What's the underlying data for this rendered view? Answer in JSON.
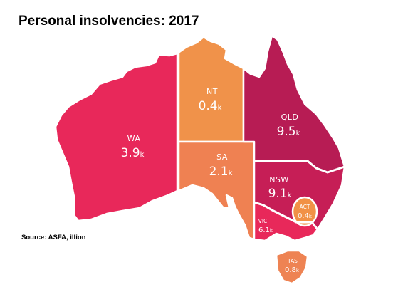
{
  "title": "Personal insolvencies: 2017",
  "source": "Source: ASFA, illion",
  "colors": {
    "wa": "#e8285a",
    "nt": "#f0924a",
    "sa": "#ef8152",
    "qld": "#b71c54",
    "nsw": "#c61e56",
    "act": "#f19146",
    "vic": "#e8285a",
    "tas": "#ee8353",
    "label": "#ffffff"
  },
  "states": {
    "wa": {
      "name": "WA",
      "value": "3.9",
      "unit": "k"
    },
    "nt": {
      "name": "NT",
      "value": "0.4",
      "unit": "k"
    },
    "sa": {
      "name": "SA",
      "value": "2.1",
      "unit": "k"
    },
    "qld": {
      "name": "QLD",
      "value": "9.5",
      "unit": "k"
    },
    "nsw": {
      "name": "NSW",
      "value": "9.1",
      "unit": "k"
    },
    "act": {
      "name": "ACT",
      "value": "0.4",
      "unit": "k"
    },
    "vic": {
      "name": "VIC",
      "value": "6.1",
      "unit": "k"
    },
    "tas": {
      "name": "TAS",
      "value": "0.8",
      "unit": "k"
    }
  }
}
